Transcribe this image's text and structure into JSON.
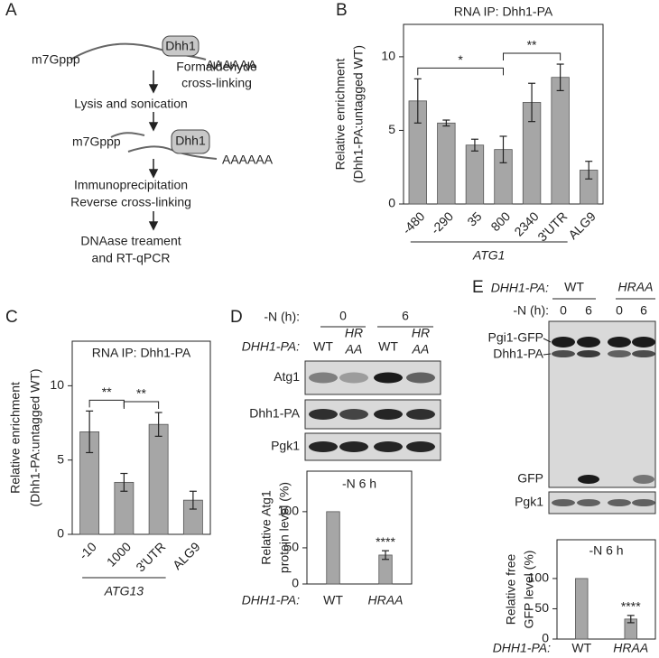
{
  "panel_labels": [
    "A",
    "B",
    "C",
    "D",
    "E"
  ],
  "panel_a": {
    "cap": "m7Gppp",
    "protein": "Dhh1",
    "polya": "AAAAAA",
    "steps": [
      [
        "Formaldehyde",
        "cross-linking"
      ],
      [
        "Lysis and sonication"
      ],
      [
        "Immunoprecipitation",
        "Reverse cross-linking"
      ],
      [
        "DNAase treament",
        "and RT-qPCR"
      ]
    ]
  },
  "panel_d_blot": {
    "time_label": "-N (h):",
    "times": [
      "0",
      "6"
    ],
    "strain_label": "DHH1-PA:",
    "strains": [
      [
        "WT"
      ],
      [
        "HR",
        "AA"
      ],
      [
        "WT"
      ],
      [
        "HR",
        "AA"
      ]
    ],
    "bands": [
      "Atg1",
      "Dhh1-PA",
      "Pgk1"
    ]
  },
  "panel_e_blot": {
    "strain_label": "DHH1-PA:",
    "strains": [
      "WT",
      "HRAA"
    ],
    "time_label": "-N (h):",
    "times": [
      "0",
      "6",
      "0",
      "6"
    ],
    "bands": [
      "Pgi1-GFP",
      "Dhh1-PA",
      "GFP",
      "Pgk1"
    ]
  },
  "chart_data": [
    {
      "type": "bar",
      "title": "RNA IP: Dhh1-PA",
      "ylabel": [
        "Relative enrichment",
        "(Dhh1-PA:untagged WT)"
      ],
      "categories": [
        "-480",
        "-290",
        "35",
        "800",
        "2340",
        "3'UTR",
        "ALG9"
      ],
      "values": [
        7.0,
        5.5,
        4.0,
        3.7,
        6.9,
        8.6,
        2.3
      ],
      "errors": [
        1.5,
        0.2,
        0.4,
        0.9,
        1.3,
        0.9,
        0.6
      ],
      "color": "#a6a6a6",
      "ylim": [
        0,
        12.2
      ],
      "yticks": [
        0,
        5,
        10
      ],
      "group": {
        "label": "ATG1",
        "categories": [
          "-480",
          "3'UTR"
        ]
      },
      "significance": [
        {
          "text": "*",
          "between": [
            "-480",
            "800"
          ]
        },
        {
          "text": "**",
          "between": [
            "800",
            "3'UTR"
          ]
        }
      ]
    },
    {
      "type": "bar",
      "title": "RNA IP: Dhh1-PA",
      "ylabel": [
        "Relative enrichment",
        "(Dhh1-PA:untagged WT)"
      ],
      "categories": [
        "-10",
        "1000",
        "3'UTR",
        "ALG9"
      ],
      "values": [
        6.9,
        3.5,
        7.4,
        2.3
      ],
      "errors": [
        1.4,
        0.6,
        0.8,
        0.6
      ],
      "color": "#a6a6a6",
      "ylim": [
        0,
        13
      ],
      "yticks": [
        0,
        5,
        10
      ],
      "group": {
        "label": "ATG13",
        "categories": [
          "-10",
          "3'UTR"
        ]
      },
      "significance": [
        {
          "text": "**",
          "between": [
            "-10",
            "1000"
          ]
        },
        {
          "text": "**",
          "between": [
            "1000",
            "3'UTR"
          ]
        }
      ]
    },
    {
      "type": "bar",
      "title": "-N 6 h",
      "ylabel": [
        "Relative Atg1",
        "protein level (%)"
      ],
      "x_prefix": "DHH1-PA:",
      "categories": [
        "WT",
        "HRAA"
      ],
      "values": [
        100,
        40
      ],
      "errors": [
        null,
        6
      ],
      "color": "#a6a6a6",
      "ylim": [
        0,
        156
      ],
      "yticks": [
        0,
        50,
        100
      ],
      "significance": [
        {
          "text": "****",
          "over": "HRAA"
        }
      ]
    },
    {
      "type": "bar",
      "title": "-N 6 h",
      "ylabel": [
        "Relative free",
        "GFP level (%)"
      ],
      "x_prefix": "DHH1-PA:",
      "categories": [
        "WT",
        "HRAA"
      ],
      "values": [
        100,
        33
      ],
      "errors": [
        null,
        6
      ],
      "color": "#a6a6a6",
      "ylim": [
        0,
        164
      ],
      "yticks": [
        0,
        50,
        100
      ],
      "significance": [
        {
          "text": "****",
          "over": "HRAA"
        }
      ]
    }
  ]
}
